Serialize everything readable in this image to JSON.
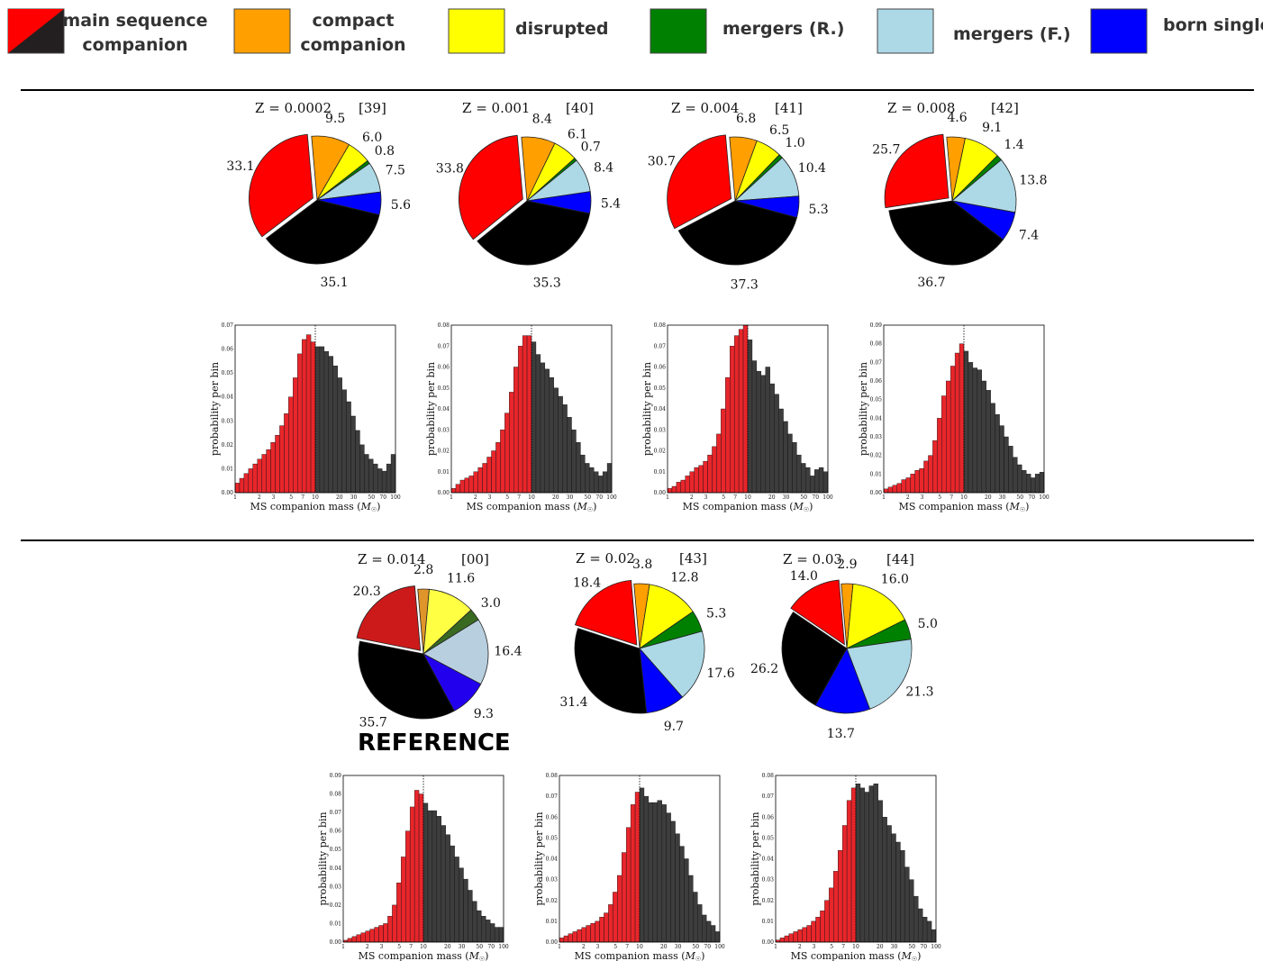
{
  "legend": [
    {
      "label": "main sequence companion",
      "lines": [
        "main sequence",
        "companion"
      ],
      "color": "#ff0000",
      "color2": "#231f20"
    },
    {
      "label": "compact companion",
      "lines": [
        "compact",
        "companion"
      ],
      "color": "#ff9f00"
    },
    {
      "label": "disrupted",
      "lines": [
        "disrupted"
      ],
      "color": "#ffff00"
    },
    {
      "label": "mergers (R.)",
      "lines": [
        "mergers (R.)"
      ],
      "color": "#008000"
    },
    {
      "label": "mergers (F.)",
      "lines": [
        "mergers (F.)"
      ],
      "color": "#add8e6"
    },
    {
      "label": "born single",
      "lines": [
        "born single"
      ],
      "color": "#0000ff"
    }
  ],
  "reference_label": "REFERENCE",
  "hist_axis": {
    "ylabel": "probability per bin",
    "xlabel_text": "MS companion mass (",
    "xlabel_sym": "M",
    "xlabel_sub": "☉",
    "xlabel_close": ")",
    "xticks": [
      "1",
      "2",
      "3",
      "5",
      "7",
      "10",
      "20",
      "30",
      "50",
      "70",
      "100"
    ]
  },
  "chart_data": [
    {
      "type": "pie",
      "title": "Z = 0.0002",
      "tag": "[39]",
      "slices": [
        {
          "name": "main sequence companion",
          "value": 33.1,
          "label": "33.1",
          "color": "#ff0000"
        },
        {
          "name": "compact companion",
          "value": 9.5,
          "label": "9.5",
          "color": "#ff9f00"
        },
        {
          "name": "disrupted",
          "value": 6.0,
          "label": "6.0",
          "color": "#ffff00"
        },
        {
          "name": "mergers (R.)",
          "value": 0.8,
          "label": "0.8",
          "color": "#008000"
        },
        {
          "name": "mergers (F.)",
          "value": 7.5,
          "label": "7.5",
          "color": "#add8e6"
        },
        {
          "name": "born single",
          "value": 5.6,
          "label": "5.6",
          "color": "#0000ff"
        },
        {
          "name": "main sequence companion",
          "value": 35.1,
          "label": "35.1",
          "color": "#000000"
        }
      ]
    },
    {
      "type": "pie",
      "title": "Z = 0.001",
      "tag": "[40]",
      "slices": [
        {
          "name": "main sequence companion",
          "value": 33.8,
          "label": "33.8",
          "color": "#ff0000"
        },
        {
          "name": "compact companion",
          "value": 8.4,
          "label": "8.4",
          "color": "#ff9f00"
        },
        {
          "name": "disrupted",
          "value": 6.1,
          "label": "6.1",
          "color": "#ffff00"
        },
        {
          "name": "mergers (R.)",
          "value": 0.7,
          "label": "0.7",
          "color": "#008000"
        },
        {
          "name": "mergers (F.)",
          "value": 8.4,
          "label": "8.4",
          "color": "#add8e6"
        },
        {
          "name": "born single",
          "value": 5.4,
          "label": "5.4",
          "color": "#0000ff"
        },
        {
          "name": "main sequence companion",
          "value": 35.3,
          "label": "35.3",
          "color": "#000000"
        }
      ]
    },
    {
      "type": "pie",
      "title": "Z = 0.004",
      "tag": "[41]",
      "slices": [
        {
          "name": "main sequence companion",
          "value": 30.7,
          "label": "30.7",
          "color": "#ff0000"
        },
        {
          "name": "compact companion",
          "value": 6.8,
          "label": "6.8",
          "color": "#ff9f00"
        },
        {
          "name": "disrupted",
          "value": 6.5,
          "label": "6.5",
          "color": "#ffff00"
        },
        {
          "name": "mergers (R.)",
          "value": 1.0,
          "label": "1.0",
          "color": "#008000"
        },
        {
          "name": "mergers (F.)",
          "value": 10.4,
          "label": "10.4",
          "color": "#add8e6"
        },
        {
          "name": "born single",
          "value": 5.3,
          "label": "5.3",
          "color": "#0000ff"
        },
        {
          "name": "main sequence companion",
          "value": 37.3,
          "label": "37.3",
          "color": "#000000"
        }
      ]
    },
    {
      "type": "pie",
      "title": "Z = 0.008",
      "tag": "[42]",
      "slices": [
        {
          "name": "main sequence companion",
          "value": 25.7,
          "label": "25.7",
          "color": "#ff0000"
        },
        {
          "name": "compact companion",
          "value": 4.6,
          "label": "4.6",
          "color": "#ff9f00"
        },
        {
          "name": "disrupted",
          "value": 9.1,
          "label": "9.1",
          "color": "#ffff00"
        },
        {
          "name": "mergers (R.)",
          "value": 1.4,
          "label": "1.4",
          "color": "#008000"
        },
        {
          "name": "mergers (F.)",
          "value": 13.8,
          "label": "13.8",
          "color": "#add8e6"
        },
        {
          "name": "born single",
          "value": 7.4,
          "label": "7.4",
          "color": "#0000ff"
        },
        {
          "name": "main sequence companion",
          "value": 36.7,
          "label": "36.7",
          "color": "#000000"
        }
      ]
    },
    {
      "type": "pie",
      "title": "Z = 0.014",
      "tag": "[00]",
      "slices": [
        {
          "name": "main sequence companion",
          "value": 20.3,
          "label": "20.3",
          "color": "#cc1a1a"
        },
        {
          "name": "compact companion",
          "value": 2.8,
          "label": "2.8",
          "color": "#e0952a"
        },
        {
          "name": "disrupted",
          "value": 11.6,
          "label": "11.6",
          "color": "#ffff44"
        },
        {
          "name": "mergers (R.)",
          "value": 3.0,
          "label": "3.0",
          "color": "#3a6a22"
        },
        {
          "name": "mergers (F.)",
          "value": 16.4,
          "label": "16.4",
          "color": "#b8cfdf"
        },
        {
          "name": "born single",
          "value": 9.3,
          "label": "9.3",
          "color": "#2200ee"
        },
        {
          "name": "main sequence companion",
          "value": 35.7,
          "label": "35.7",
          "color": "#000000"
        }
      ]
    },
    {
      "type": "pie",
      "title": "Z = 0.02",
      "tag": "[43]",
      "slices": [
        {
          "name": "main sequence companion",
          "value": 18.4,
          "label": "18.4",
          "color": "#ff0000"
        },
        {
          "name": "compact companion",
          "value": 3.8,
          "label": "3.8",
          "color": "#ff9f00"
        },
        {
          "name": "disrupted",
          "value": 12.8,
          "label": "12.8",
          "color": "#ffff00"
        },
        {
          "name": "mergers (R.)",
          "value": 5.3,
          "label": "5.3",
          "color": "#008000"
        },
        {
          "name": "mergers (F.)",
          "value": 17.6,
          "label": "17.6",
          "color": "#add8e6"
        },
        {
          "name": "born single",
          "value": 9.7,
          "label": "9.7",
          "color": "#0000ff"
        },
        {
          "name": "main sequence companion",
          "value": 31.4,
          "label": "31.4",
          "color": "#000000"
        }
      ]
    },
    {
      "type": "pie",
      "title": "Z = 0.03",
      "tag": "[44]",
      "slices": [
        {
          "name": "main sequence companion",
          "value": 14.0,
          "label": "14.0",
          "color": "#ff0000"
        },
        {
          "name": "compact companion",
          "value": 2.9,
          "label": "2.9",
          "color": "#ff9f00"
        },
        {
          "name": "disrupted",
          "value": 16.0,
          "label": "16.0",
          "color": "#ffff00"
        },
        {
          "name": "mergers (R.)",
          "value": 5.0,
          "label": "5.0",
          "color": "#008000"
        },
        {
          "name": "mergers (F.)",
          "value": 21.3,
          "label": "21.3",
          "color": "#add8e6"
        },
        {
          "name": "born single",
          "value": 13.7,
          "label": "13.7",
          "color": "#0000ff"
        },
        {
          "name": "main sequence companion",
          "value": 26.2,
          "label": "26.2",
          "color": "#000000"
        }
      ]
    },
    {
      "type": "bar",
      "title": "Z = 0.0002",
      "xlim": [
        1,
        100
      ],
      "ylim": [
        0,
        0.07
      ],
      "x_scale": "log",
      "threshold": 10,
      "yticks": [
        "0.00",
        "0.01",
        "0.02",
        "0.03",
        "0.04",
        "0.05",
        "0.06",
        "0.07"
      ],
      "values": [
        0.004,
        0.006,
        0.008,
        0.01,
        0.012,
        0.014,
        0.016,
        0.018,
        0.021,
        0.024,
        0.028,
        0.033,
        0.04,
        0.048,
        0.058,
        0.064,
        0.066,
        0.063,
        0.061,
        0.061,
        0.059,
        0.057,
        0.053,
        0.048,
        0.043,
        0.038,
        0.032,
        0.026,
        0.02,
        0.016,
        0.014,
        0.012,
        0.01,
        0.009,
        0.012,
        0.016
      ]
    },
    {
      "type": "bar",
      "title": "Z = 0.001",
      "xlim": [
        1,
        100
      ],
      "ylim": [
        0,
        0.08
      ],
      "x_scale": "log",
      "threshold": 10,
      "yticks": [
        "0.00",
        "0.01",
        "0.02",
        "0.03",
        "0.04",
        "0.05",
        "0.06",
        "0.07",
        "0.08"
      ],
      "values": [
        0.002,
        0.004,
        0.006,
        0.007,
        0.008,
        0.01,
        0.012,
        0.014,
        0.017,
        0.02,
        0.024,
        0.03,
        0.038,
        0.048,
        0.06,
        0.07,
        0.075,
        0.075,
        0.072,
        0.066,
        0.062,
        0.059,
        0.055,
        0.05,
        0.046,
        0.042,
        0.036,
        0.03,
        0.024,
        0.018,
        0.014,
        0.012,
        0.01,
        0.008,
        0.01,
        0.014
      ]
    },
    {
      "type": "bar",
      "title": "Z = 0.004",
      "xlim": [
        1,
        100
      ],
      "ylim": [
        0,
        0.08
      ],
      "x_scale": "log",
      "threshold": 10,
      "yticks": [
        "0.00",
        "0.01",
        "0.02",
        "0.03",
        "0.04",
        "0.05",
        "0.06",
        "0.07",
        "0.08"
      ],
      "values": [
        0.002,
        0.003,
        0.005,
        0.006,
        0.008,
        0.01,
        0.012,
        0.013,
        0.015,
        0.018,
        0.022,
        0.028,
        0.04,
        0.055,
        0.07,
        0.075,
        0.078,
        0.08,
        0.073,
        0.063,
        0.058,
        0.056,
        0.06,
        0.052,
        0.047,
        0.04,
        0.034,
        0.028,
        0.024,
        0.018,
        0.014,
        0.012,
        0.008,
        0.011,
        0.012,
        0.01
      ]
    },
    {
      "type": "bar",
      "title": "Z = 0.008",
      "xlim": [
        1,
        100
      ],
      "ylim": [
        0,
        0.09
      ],
      "x_scale": "log",
      "threshold": 10,
      "yticks": [
        "0.00",
        "0.01",
        "0.02",
        "0.03",
        "0.04",
        "0.05",
        "0.06",
        "0.07",
        "0.08",
        "0.09"
      ],
      "values": [
        0.002,
        0.003,
        0.004,
        0.005,
        0.007,
        0.008,
        0.01,
        0.012,
        0.013,
        0.017,
        0.02,
        0.028,
        0.04,
        0.052,
        0.06,
        0.068,
        0.075,
        0.08,
        0.076,
        0.07,
        0.067,
        0.066,
        0.06,
        0.055,
        0.048,
        0.042,
        0.036,
        0.03,
        0.025,
        0.019,
        0.015,
        0.012,
        0.01,
        0.008,
        0.01,
        0.011
      ]
    },
    {
      "type": "bar",
      "title": "Z = 0.014",
      "xlim": [
        1,
        100
      ],
      "ylim": [
        0,
        0.09
      ],
      "x_scale": "log",
      "threshold": 10,
      "yticks": [
        "0.00",
        "0.01",
        "0.02",
        "0.03",
        "0.04",
        "0.05",
        "0.06",
        "0.07",
        "0.08",
        "0.09"
      ],
      "values": [
        0.001,
        0.002,
        0.003,
        0.004,
        0.005,
        0.006,
        0.007,
        0.008,
        0.009,
        0.01,
        0.014,
        0.02,
        0.032,
        0.046,
        0.06,
        0.073,
        0.082,
        0.08,
        0.075,
        0.071,
        0.071,
        0.068,
        0.063,
        0.058,
        0.052,
        0.046,
        0.04,
        0.034,
        0.028,
        0.022,
        0.017,
        0.014,
        0.012,
        0.01,
        0.008,
        0.008
      ]
    },
    {
      "type": "bar",
      "title": "Z = 0.02",
      "xlim": [
        1,
        100
      ],
      "ylim": [
        0,
        0.08
      ],
      "x_scale": "log",
      "threshold": 10,
      "yticks": [
        "0.00",
        "0.01",
        "0.02",
        "0.03",
        "0.04",
        "0.05",
        "0.06",
        "0.07",
        "0.08"
      ],
      "values": [
        0.002,
        0.003,
        0.004,
        0.005,
        0.006,
        0.007,
        0.008,
        0.009,
        0.01,
        0.012,
        0.014,
        0.018,
        0.024,
        0.032,
        0.043,
        0.055,
        0.066,
        0.072,
        0.074,
        0.07,
        0.067,
        0.067,
        0.068,
        0.066,
        0.062,
        0.058,
        0.052,
        0.046,
        0.04,
        0.032,
        0.024,
        0.018,
        0.013,
        0.01,
        0.008,
        0.005
      ]
    },
    {
      "type": "bar",
      "title": "Z = 0.03",
      "xlim": [
        1,
        100
      ],
      "ylim": [
        0,
        0.08
      ],
      "x_scale": "log",
      "threshold": 10,
      "yticks": [
        "0.00",
        "0.01",
        "0.02",
        "0.03",
        "0.04",
        "0.05",
        "0.06",
        "0.07",
        "0.08"
      ],
      "values": [
        0.001,
        0.002,
        0.003,
        0.004,
        0.005,
        0.006,
        0.007,
        0.008,
        0.01,
        0.012,
        0.015,
        0.02,
        0.026,
        0.034,
        0.044,
        0.056,
        0.068,
        0.074,
        0.076,
        0.074,
        0.072,
        0.075,
        0.076,
        0.068,
        0.06,
        0.056,
        0.052,
        0.048,
        0.044,
        0.036,
        0.03,
        0.022,
        0.016,
        0.012,
        0.01,
        0.006
      ]
    }
  ]
}
